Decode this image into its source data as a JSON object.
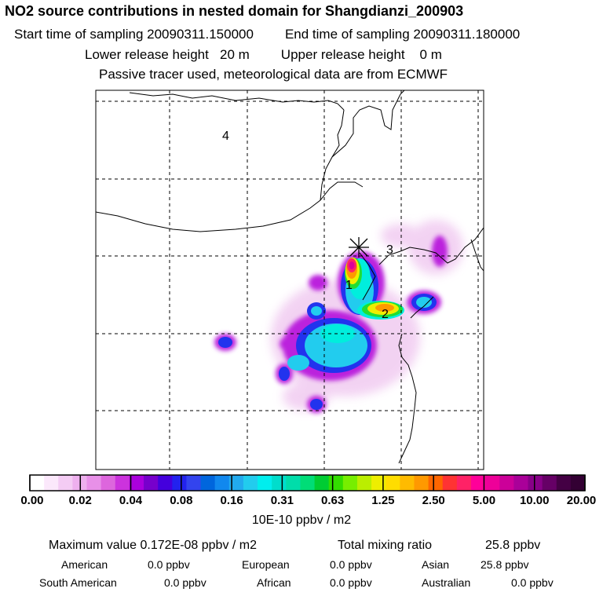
{
  "header": {
    "title": "NO2 source contributions in nested domain for Shangdianzi_200903",
    "start_label": "Start time of sampling 20090311.150000",
    "end_label": "End time of sampling 20090311.180000",
    "lower_label": "Lower release height   20 m",
    "upper_label": "Upper release height    0 m",
    "tracer_label": "Passive tracer used, meteorological data are from ECMWF"
  },
  "map": {
    "region_labels": [
      "1",
      "2",
      "3",
      "4"
    ]
  },
  "colorbar": {
    "ticks": [
      "0.00",
      "0.02",
      "0.04",
      "0.08",
      "0.16",
      "0.31",
      "0.63",
      "1.25",
      "2.50",
      "5.00",
      "10.00",
      "20.00"
    ],
    "unit": "10E-10 ppbv / m2",
    "colors": [
      "#ffffff",
      "#fbe8fb",
      "#f4ccf4",
      "#eeb0ee",
      "#e890e8",
      "#dd66dd",
      "#cc33dd",
      "#aa00dd",
      "#7700cc",
      "#4400dd",
      "#2222ee",
      "#3344ee",
      "#0066dd",
      "#1188ee",
      "#22aaee",
      "#22ccee",
      "#00eeee",
      "#00ddcc",
      "#00ddaa",
      "#00dd77",
      "#00cc33",
      "#33dd00",
      "#77ee00",
      "#bbee00",
      "#eeee00",
      "#ffdd00",
      "#ffbb00",
      "#ff9900",
      "#ff6600",
      "#ff3333",
      "#ff2266",
      "#ff0099",
      "#ee0099",
      "#cc0099",
      "#aa0099",
      "#880088",
      "#660066",
      "#440044",
      "#330033"
    ]
  },
  "stats": {
    "max_label": "Maximum value  0.172E-08 ppbv / m2",
    "total_label": "Total mixing ratio",
    "total_value": "25.8 ppbv",
    "american_label": "American",
    "american_value": "0.0 ppbv",
    "european_label": "European",
    "european_value": "0.0 ppbv",
    "asian_label": "Asian",
    "asian_value": "25.8 ppbv",
    "south_american_label": "South American",
    "south_american_value": "0.0 ppbv",
    "african_label": "African",
    "african_value": "0.0 ppbv",
    "australian_label": "Australian",
    "australian_value": "0.0 ppbv"
  }
}
